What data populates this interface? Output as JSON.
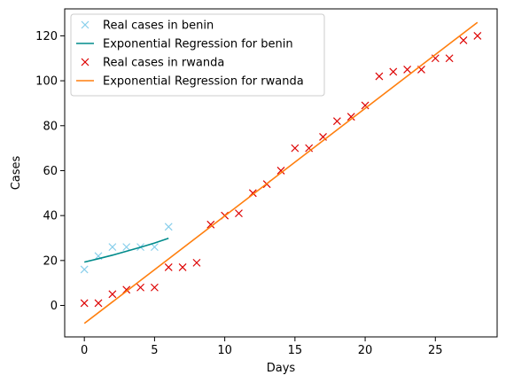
{
  "chart_data": {
    "type": "scatter",
    "xlabel": "Days",
    "ylabel": "Cases",
    "xlim": [
      -1.4,
      29.4
    ],
    "ylim": [
      -14,
      132
    ],
    "xticks": [
      0,
      5,
      10,
      15,
      20,
      25
    ],
    "yticks": [
      0,
      20,
      40,
      60,
      80,
      100,
      120
    ],
    "grid": false,
    "legend_position": "top-left",
    "series": [
      {
        "name": "Real cases in benin",
        "kind": "points",
        "marker": "x",
        "color": "#87ceeb",
        "x": [
          0,
          1,
          2,
          3,
          4,
          5,
          6
        ],
        "y": [
          16,
          22,
          26,
          26,
          26,
          26,
          35
        ]
      },
      {
        "name": "Exponential Regression for benin",
        "kind": "line",
        "color": "#008b8b",
        "x": [
          0,
          1,
          2,
          3,
          4,
          5,
          6
        ],
        "y": [
          19.3,
          20.8,
          22.4,
          24.1,
          25.9,
          27.8,
          29.9
        ]
      },
      {
        "name": "Real cases in rwanda",
        "kind": "points",
        "marker": "x",
        "color": "#dd0000",
        "x": [
          0,
          1,
          2,
          3,
          4,
          5,
          6,
          7,
          8,
          9,
          10,
          11,
          12,
          13,
          14,
          15,
          16,
          17,
          18,
          19,
          20,
          21,
          22,
          23,
          24,
          25,
          26,
          27,
          28
        ],
        "y": [
          1,
          1,
          5,
          7,
          8,
          8,
          17,
          17,
          19,
          36,
          40,
          41,
          50,
          54,
          60,
          70,
          70,
          75,
          82,
          84,
          89,
          102,
          104,
          105,
          105,
          110,
          110,
          118,
          120
        ]
      },
      {
        "name": "Exponential Regression for rwanda",
        "kind": "line",
        "color": "#ff7f0e",
        "x": [
          0,
          28
        ],
        "y": [
          -8,
          126
        ]
      }
    ]
  }
}
